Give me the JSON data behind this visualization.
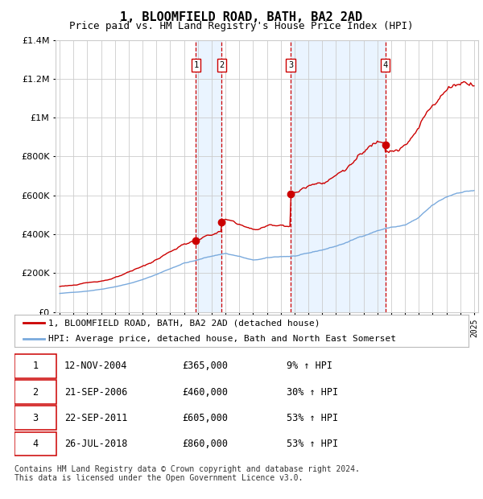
{
  "title": "1, BLOOMFIELD ROAD, BATH, BA2 2AD",
  "subtitle": "Price paid vs. HM Land Registry's House Price Index (HPI)",
  "title_fontsize": 11,
  "subtitle_fontsize": 9,
  "background_color": "#ffffff",
  "plot_bg_color": "#ffffff",
  "grid_color": "#cccccc",
  "purchase_dates": [
    2004.87,
    2006.73,
    2011.73,
    2018.57
  ],
  "purchase_prices": [
    365000,
    460000,
    605000,
    860000
  ],
  "purchase_labels": [
    "1",
    "2",
    "3",
    "4"
  ],
  "legend_label_red": "1, BLOOMFIELD ROAD, BATH, BA2 2AD (detached house)",
  "legend_label_blue": "HPI: Average price, detached house, Bath and North East Somerset",
  "table_rows": [
    [
      "1",
      "12-NOV-2004",
      "£365,000",
      "9% ↑ HPI"
    ],
    [
      "2",
      "21-SEP-2006",
      "£460,000",
      "30% ↑ HPI"
    ],
    [
      "3",
      "22-SEP-2011",
      "£605,000",
      "53% ↑ HPI"
    ],
    [
      "4",
      "26-JUL-2018",
      "£860,000",
      "53% ↑ HPI"
    ]
  ],
  "footer": "Contains HM Land Registry data © Crown copyright and database right 2024.\nThis data is licensed under the Open Government Licence v3.0.",
  "ylim": [
    0,
    1400000
  ],
  "yticks": [
    0,
    200000,
    400000,
    600000,
    800000,
    1000000,
    1200000,
    1400000
  ],
  "red_color": "#cc0000",
  "blue_color": "#7aaadd",
  "shade_color": "#ddeeff",
  "dashed_color": "#cc0000",
  "xlim_start": 1994.7,
  "xlim_end": 2025.3
}
